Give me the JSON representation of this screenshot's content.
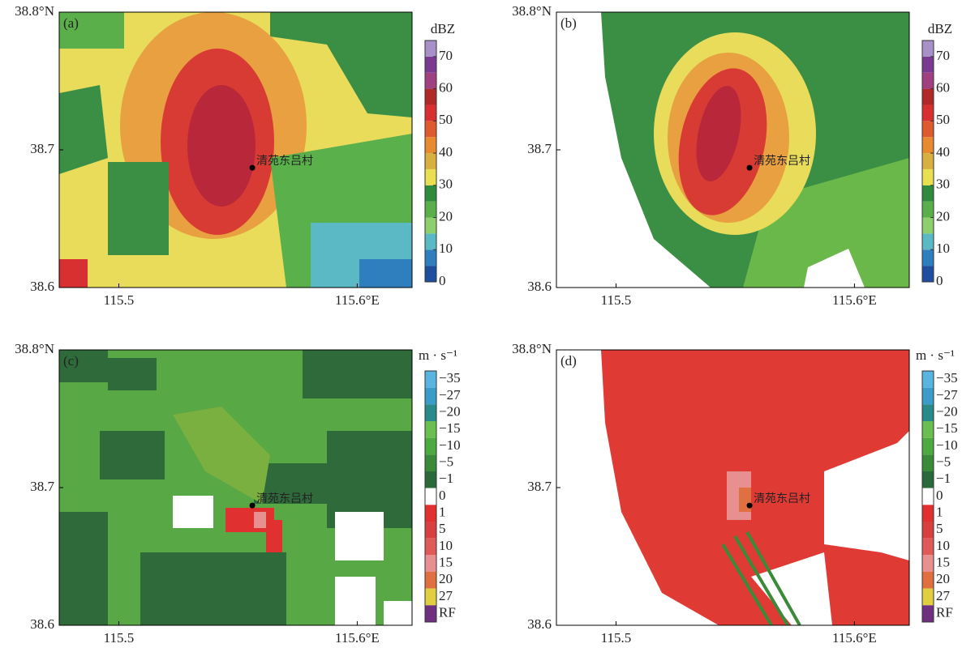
{
  "chart_data": [
    {
      "type": "heatmap",
      "panel_label": "(a)",
      "xlim": [
        115.475,
        115.623
      ],
      "ylim": [
        38.6,
        38.8
      ],
      "xticks": [
        115.5,
        {
          "value": 115.6,
          "label": "115.6°E"
        }
      ],
      "yticks": [
        38.6,
        38.7,
        {
          "value": 38.8,
          "label": "38.8°N"
        }
      ],
      "site": {
        "label": "清苑东吕村",
        "lon": 115.556,
        "lat": 38.687
      },
      "colorbar": {
        "title": "dBZ",
        "levels": [
          0,
          5,
          10,
          15,
          20,
          25,
          30,
          35,
          40,
          45,
          50,
          55,
          60,
          65,
          70,
          75
        ],
        "ticks": [
          0,
          10,
          20,
          30,
          40,
          50,
          60,
          70
        ],
        "colors": [
          "#1f4e9e",
          "#2f7fbf",
          "#5ab9c4",
          "#8ccf6c",
          "#5aaf4a",
          "#2e8b3e",
          "#e8e050",
          "#d8b040",
          "#e88a30",
          "#e05a30",
          "#d83030",
          "#b02828",
          "#a04080",
          "#7a3a90",
          "#a890c8"
        ]
      }
    },
    {
      "type": "heatmap",
      "panel_label": "(b)",
      "xlim": [
        115.475,
        115.623
      ],
      "ylim": [
        38.6,
        38.8
      ],
      "xticks": [
        115.5,
        {
          "value": 115.6,
          "label": "115.6°E"
        }
      ],
      "yticks": [
        38.6,
        38.7,
        {
          "value": 38.8,
          "label": "38.8°N"
        }
      ],
      "site": {
        "label": "清苑东吕村",
        "lon": 115.556,
        "lat": 38.687
      },
      "colorbar": {
        "title": "dBZ",
        "levels": [
          0,
          5,
          10,
          15,
          20,
          25,
          30,
          35,
          40,
          45,
          50,
          55,
          60,
          65,
          70,
          75
        ],
        "ticks": [
          0,
          10,
          20,
          30,
          40,
          50,
          60,
          70
        ],
        "colors": [
          "#1f4e9e",
          "#2f7fbf",
          "#5ab9c4",
          "#8ccf6c",
          "#5aaf4a",
          "#2e8b3e",
          "#e8e050",
          "#d8b040",
          "#e88a30",
          "#e05a30",
          "#d83030",
          "#b02828",
          "#a04080",
          "#7a3a90",
          "#a890c8"
        ]
      }
    },
    {
      "type": "heatmap",
      "panel_label": "(c)",
      "xlim": [
        115.475,
        115.623
      ],
      "ylim": [
        38.6,
        38.8
      ],
      "xticks": [
        115.5,
        {
          "value": 115.6,
          "label": "115.6°E"
        }
      ],
      "yticks": [
        38.6,
        38.7,
        {
          "value": 38.8,
          "label": "38.8°N"
        }
      ],
      "site": {
        "label": "清苑东吕村",
        "lon": 115.556,
        "lat": 38.687
      },
      "colorbar": {
        "title": "m · s⁻¹",
        "categories": [
          "−35",
          "−27",
          "−20",
          "−15",
          "−10",
          "−5",
          "−1",
          "0",
          "1",
          "5",
          "10",
          "15",
          "20",
          "27",
          "RF"
        ],
        "colors": [
          "#5ab4e0",
          "#3a9cc8",
          "#2a8a8a",
          "#6abf50",
          "#4caa40",
          "#3a8a3a",
          "#2a6a3a",
          "#ffffff",
          "#e03030",
          "#d84040",
          "#e05a5a",
          "#e89090",
          "#e07040",
          "#e0d040",
          "#703080"
        ]
      }
    },
    {
      "type": "heatmap",
      "panel_label": "(d)",
      "xlim": [
        115.475,
        115.623
      ],
      "ylim": [
        38.6,
        38.8
      ],
      "xticks": [
        115.5,
        {
          "value": 115.6,
          "label": "115.6°E"
        }
      ],
      "yticks": [
        38.6,
        38.7,
        {
          "value": 38.8,
          "label": "38.8°N"
        }
      ],
      "site": {
        "label": "清苑东吕村",
        "lon": 115.556,
        "lat": 38.687
      },
      "colorbar": {
        "title": "m · s⁻¹",
        "categories": [
          "−35",
          "−27",
          "−20",
          "−15",
          "−10",
          "−5",
          "−1",
          "0",
          "1",
          "5",
          "10",
          "15",
          "20",
          "27",
          "RF"
        ],
        "colors": [
          "#5ab4e0",
          "#3a9cc8",
          "#2a8a8a",
          "#6abf50",
          "#4caa40",
          "#3a8a3a",
          "#2a6a3a",
          "#ffffff",
          "#e03030",
          "#d84040",
          "#e05a5a",
          "#e89090",
          "#e07040",
          "#e0d040",
          "#703080"
        ]
      }
    }
  ]
}
